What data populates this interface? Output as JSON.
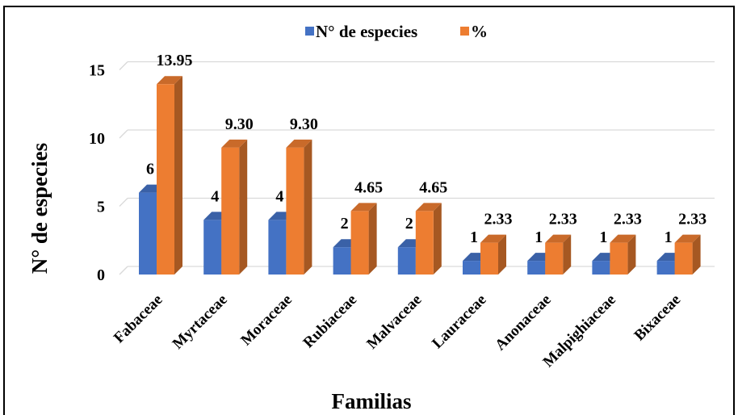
{
  "chart_data": {
    "type": "bar",
    "title": "",
    "xlabel": "Familias",
    "ylabel": "N° de especies",
    "categories": [
      "Fabaceae",
      "Myrtaceae",
      "Moraceae",
      "Rubiaceae",
      "Malvaceae",
      "Lauraceae",
      "Anonaceae",
      "Malpighiaceae",
      "Bixaceae"
    ],
    "series": [
      {
        "name": "N° de especies",
        "color": "#4472c4",
        "values": [
          6,
          4,
          4,
          2,
          2,
          1,
          1,
          1,
          1
        ],
        "labels": [
          "6",
          "4",
          "4",
          "2",
          "2",
          "1",
          "1",
          "1",
          "1"
        ]
      },
      {
        "name": "%",
        "color": "#ed7d31",
        "values": [
          13.95,
          9.3,
          9.3,
          4.65,
          4.65,
          2.33,
          2.33,
          2.33,
          2.33
        ],
        "labels": [
          "13.95",
          "9.30",
          "9.30",
          "4.65",
          "4.65",
          "2.33",
          "2.33",
          "2.33",
          "2.33"
        ]
      }
    ],
    "ylim": [
      0,
      15
    ],
    "yticks": [
      "0",
      "5",
      "10",
      "15"
    ],
    "grid": true,
    "legend_position": "top-center",
    "style": "3d-clustered-column"
  }
}
